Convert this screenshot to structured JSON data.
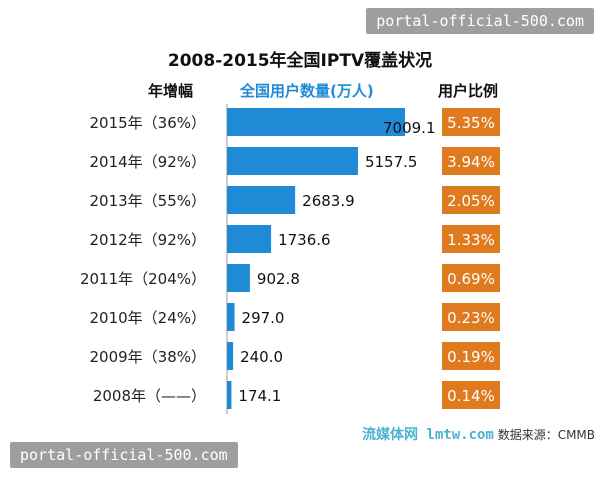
{
  "chart_data": {
    "type": "bar",
    "orientation": "horizontal",
    "title": "2008-2015年全国IPTV覆盖状况",
    "column_headers": {
      "growth": "年增幅",
      "users": "全国用户数量(万人)",
      "ratio": "用户比例"
    },
    "categories": [
      "2015年（36%）",
      "2014年（92%）",
      "2013年（55%）",
      "2012年（92%）",
      "2011年（204%）",
      "2010年（24%）",
      "2009年（38%）",
      "2008年（——）"
    ],
    "values": [
      7009.1,
      5157.5,
      2683.9,
      1736.6,
      902.8,
      297.0,
      240.0,
      174.1
    ],
    "value_labels": [
      "7009.1",
      "5157.5",
      "2683.9",
      "1736.6",
      "902.8",
      "297.0",
      "240.0",
      "174.1"
    ],
    "ratios": [
      "5.35%",
      "3.94%",
      "2.05%",
      "1.33%",
      "0.69%",
      "0.23%",
      "0.19%",
      "0.14%"
    ],
    "xlim": [
      0,
      7009.1
    ],
    "grid": false,
    "colors": {
      "bar": "#1f8bd6",
      "ratio_box": "#e07a1f",
      "ratio_text": "#ffffff"
    }
  },
  "source": {
    "watermark_text": "流媒体网 lmtw.com",
    "text": "数据来源：CMMB"
  },
  "watermarks": {
    "top": "portal-official-500.com",
    "bottom": "portal-official-500.com"
  }
}
